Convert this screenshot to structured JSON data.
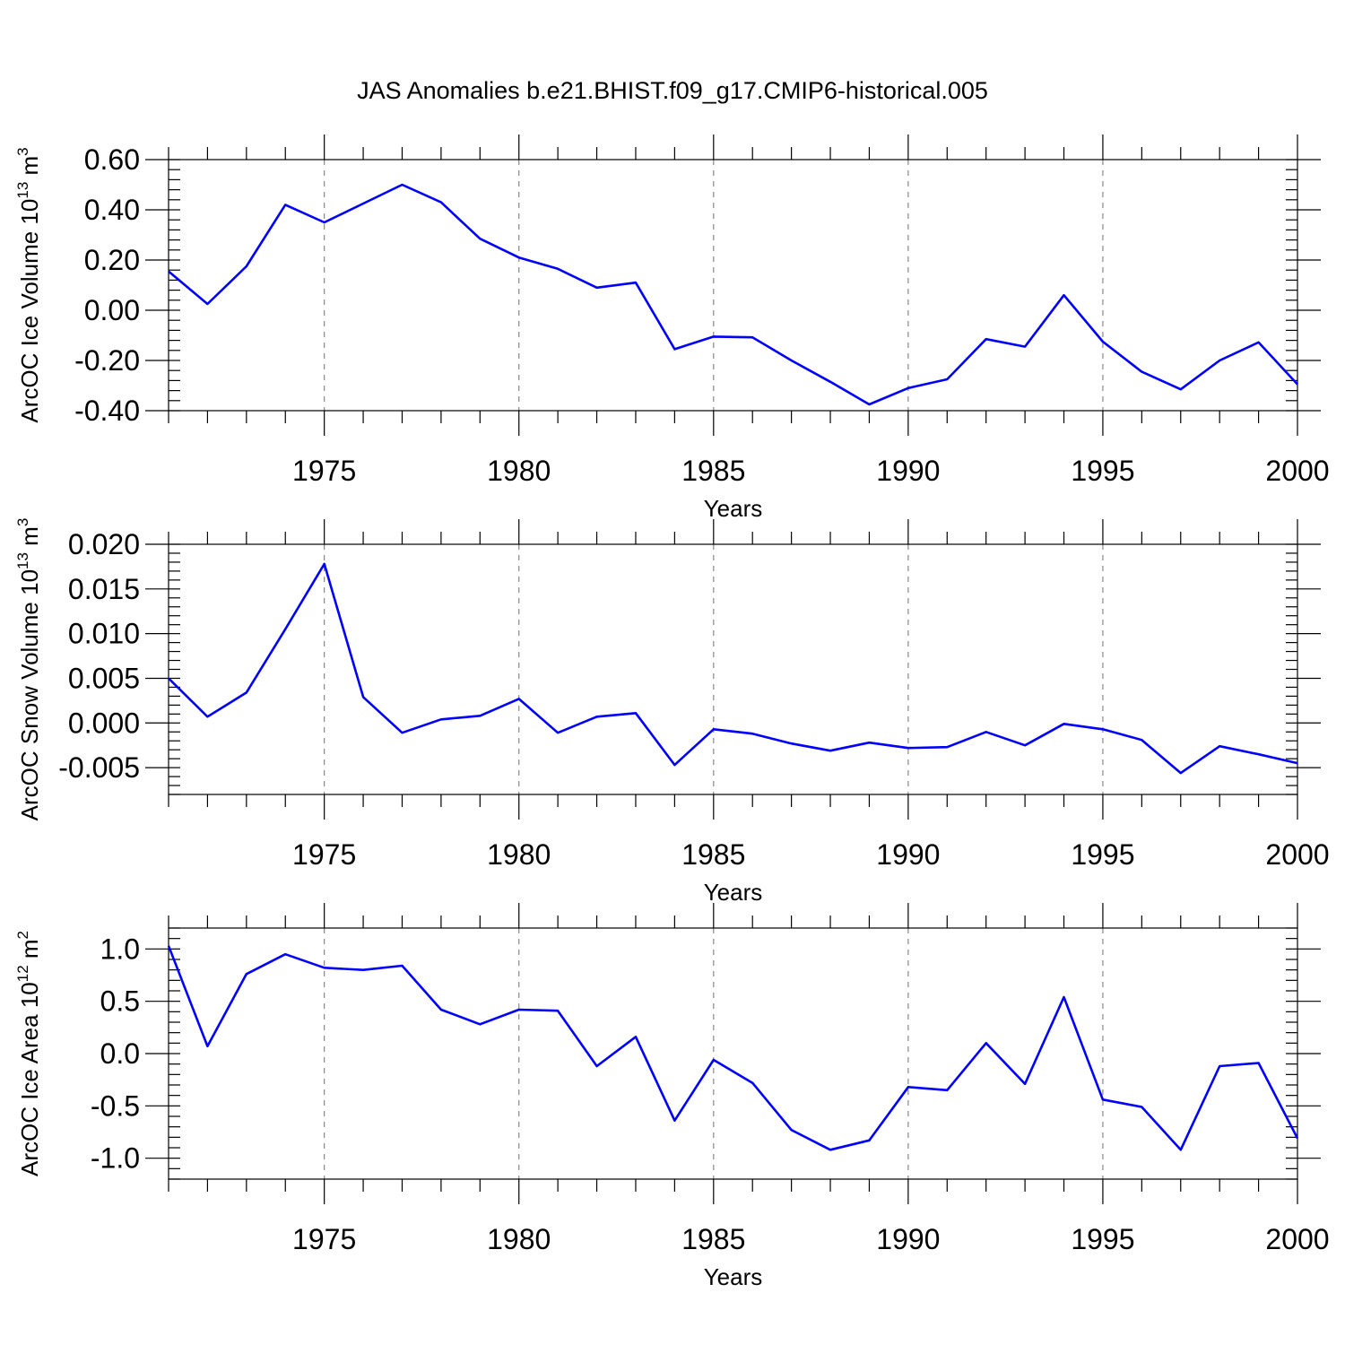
{
  "title": "JAS Anomalies b.e21.BHIST.f09_g17.CMIP6-historical.005",
  "colors": {
    "series": "#0000ff",
    "axis": "#000000",
    "grid": "#888888"
  },
  "chart_data": [
    {
      "type": "line",
      "xlabel": "Years",
      "ylabel": "ArcOC Ice Volume 10",
      "ylabel_exp": "13",
      "ylabel_unit": " m",
      "ylabel_unit_exp": "3",
      "xlim": [
        1971,
        2000
      ],
      "ylim": [
        -0.4,
        0.6
      ],
      "yticks": [
        -0.4,
        -0.2,
        0.0,
        0.2,
        0.4,
        0.6
      ],
      "ytick_labels": [
        "-0.40",
        "-0.20",
        "0.00",
        "0.20",
        "0.40",
        "0.60"
      ],
      "xticks": [
        1975,
        1980,
        1985,
        1990,
        1995,
        2000
      ],
      "xtick_labels": [
        "1975",
        "1980",
        "1985",
        "1990",
        "1995",
        "2000"
      ],
      "grid": "vertical dashed at labeled years",
      "x": [
        1971,
        1972,
        1973,
        1974,
        1975,
        1976,
        1977,
        1978,
        1979,
        1980,
        1981,
        1982,
        1983,
        1984,
        1985,
        1986,
        1987,
        1988,
        1989,
        1990,
        1991,
        1992,
        1993,
        1994,
        1995,
        1996,
        1997,
        1998,
        1999,
        2000
      ],
      "values": [
        0.155,
        0.025,
        0.175,
        0.42,
        0.35,
        0.425,
        0.5,
        0.43,
        0.285,
        0.21,
        0.165,
        0.09,
        0.11,
        -0.155,
        -0.105,
        -0.108,
        -0.2,
        -0.285,
        -0.375,
        -0.31,
        -0.275,
        -0.115,
        -0.145,
        0.06,
        -0.125,
        -0.245,
        -0.315,
        -0.2,
        -0.128,
        -0.295
      ]
    },
    {
      "type": "line",
      "xlabel": "Years",
      "ylabel": "ArcOC Snow Volume 10",
      "ylabel_exp": "13",
      "ylabel_unit": " m",
      "ylabel_unit_exp": "3",
      "xlim": [
        1971,
        2000
      ],
      "ylim": [
        -0.008,
        0.02
      ],
      "yticks": [
        -0.005,
        0.0,
        0.005,
        0.01,
        0.015,
        0.02
      ],
      "ytick_labels": [
        "-0.005",
        "0.000",
        "0.005",
        "0.010",
        "0.015",
        "0.020"
      ],
      "xticks": [
        1975,
        1980,
        1985,
        1990,
        1995,
        2000
      ],
      "xtick_labels": [
        "1975",
        "1980",
        "1985",
        "1990",
        "1995",
        "2000"
      ],
      "grid": "vertical dashed at labeled years",
      "x": [
        1971,
        1972,
        1973,
        1974,
        1975,
        1976,
        1977,
        1978,
        1979,
        1980,
        1981,
        1982,
        1983,
        1984,
        1985,
        1986,
        1987,
        1988,
        1989,
        1990,
        1991,
        1992,
        1993,
        1994,
        1995,
        1996,
        1997,
        1998,
        1999,
        2000
      ],
      "values": [
        0.005,
        0.0007,
        0.0034,
        0.0105,
        0.0178,
        0.0029,
        -0.0011,
        0.0004,
        0.0008,
        0.0027,
        -0.0011,
        0.0007,
        0.0011,
        -0.0047,
        -0.0007,
        -0.0012,
        -0.0023,
        -0.0031,
        -0.0022,
        -0.0028,
        -0.0027,
        -0.001,
        -0.0025,
        -0.0001,
        -0.0007,
        -0.0019,
        -0.0056,
        -0.0026,
        -0.0035,
        -0.0045
      ]
    },
    {
      "type": "line",
      "xlabel": "Years",
      "ylabel": "ArcOC Ice Area 10",
      "ylabel_exp": "12",
      "ylabel_unit": " m",
      "ylabel_unit_exp": "2",
      "xlim": [
        1971,
        2000
      ],
      "ylim": [
        -1.2,
        1.2
      ],
      "yticks": [
        -1.0,
        -0.5,
        0.0,
        0.5,
        1.0
      ],
      "ytick_labels": [
        "-1.0",
        "-0.5",
        "0.0",
        "0.5",
        "1.0"
      ],
      "xticks": [
        1975,
        1980,
        1985,
        1990,
        1995,
        2000
      ],
      "xtick_labels": [
        "1975",
        "1980",
        "1985",
        "1990",
        "1995",
        "2000"
      ],
      "grid": "vertical dashed at labeled years",
      "x": [
        1971,
        1972,
        1973,
        1974,
        1975,
        1976,
        1977,
        1978,
        1979,
        1980,
        1981,
        1982,
        1983,
        1984,
        1985,
        1986,
        1987,
        1988,
        1989,
        1990,
        1991,
        1992,
        1993,
        1994,
        1995,
        1996,
        1997,
        1998,
        1999,
        2000
      ],
      "values": [
        1.03,
        0.07,
        0.76,
        0.95,
        0.82,
        0.8,
        0.84,
        0.42,
        0.28,
        0.42,
        0.41,
        -0.12,
        0.16,
        -0.64,
        -0.06,
        -0.28,
        -0.73,
        -0.92,
        -0.83,
        -0.32,
        -0.35,
        0.1,
        -0.29,
        0.54,
        -0.44,
        -0.51,
        -0.92,
        -0.12,
        -0.09,
        -0.81
      ]
    }
  ]
}
